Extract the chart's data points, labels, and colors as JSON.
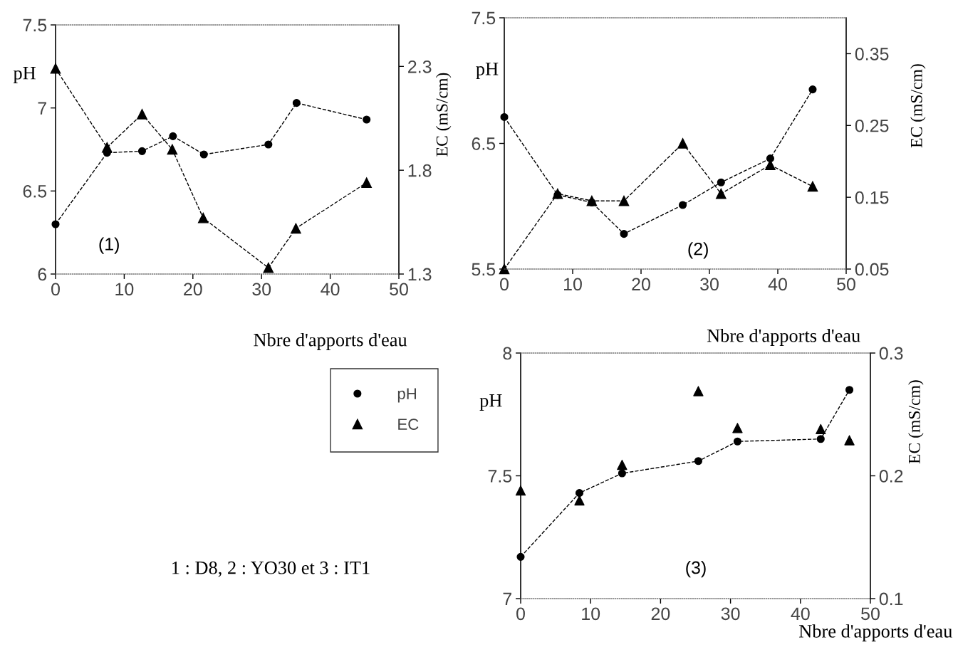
{
  "chart_data": [
    {
      "type": "line",
      "xlabel": "Nbre d'apports d'eau",
      "ylabel": "pH",
      "y2label": "EC (mS/cm)",
      "xlim": [
        0,
        50
      ],
      "xticks": [
        0,
        10,
        20,
        30,
        40,
        50
      ],
      "ylim": [
        6,
        7.5
      ],
      "yticks": [
        6,
        6.5,
        7,
        7.5
      ],
      "y2lim": [
        1.3,
        2.5
      ],
      "y2ticks": [
        1.3,
        1.8,
        2.3
      ],
      "legend": "bottom right",
      "annotations": [
        "(1)",
        "1 : D8, 2 : YO30 et 3 : IT1"
      ],
      "series": [
        {
          "name": "pH",
          "color": "#000000",
          "marker": "circle",
          "line_style": "dashed",
          "x": [
            0,
            7.5,
            12.6,
            17.1,
            21.6,
            31,
            35.1,
            45.3
          ],
          "values": [
            6.3,
            6.73,
            6.74,
            6.83,
            6.72,
            6.78,
            7.03,
            6.93
          ]
        },
        {
          "name": "EC",
          "axis": "y2",
          "color": "#000000",
          "marker": "triangle",
          "line_style": "dashed",
          "x": [
            0,
            7.5,
            12.6,
            17,
            21.5,
            31,
            35,
            45.3
          ],
          "values": [
            2.29,
            1.91,
            2.07,
            1.9,
            1.57,
            1.33,
            1.52,
            1.74
          ]
        }
      ]
    },
    {
      "type": "line",
      "xlabel": "Nbre d'apports d'eau",
      "ylabel": "pH",
      "y2label": "EC (mS/cm)",
      "xlim": [
        0,
        50
      ],
      "xticks": [
        0,
        10,
        20,
        30,
        40,
        50
      ],
      "ylim": [
        5.5,
        7.5
      ],
      "yticks": [
        5.5,
        6.5,
        7.5
      ],
      "y2lim": [
        0.05,
        0.4
      ],
      "y2ticks": [
        0.05,
        0.15,
        0.25,
        0.35
      ],
      "annotations": [
        "(2)"
      ],
      "series": [
        {
          "color": "#000000",
          "marker": "circle",
          "line_style": "dashed",
          "x": [
            0,
            7.8,
            12.8,
            17.5,
            26.1,
            31.7,
            38.9,
            45.1
          ],
          "values": [
            6.71,
            6.09,
            6.03,
            5.78,
            6.01,
            6.19,
            6.38,
            6.93
          ]
        },
        {
          "axis": "y2",
          "color": "#000000",
          "marker": "triangle",
          "line_style": "dashed",
          "x": [
            0,
            7.8,
            12.8,
            17.5,
            26.1,
            31.7,
            38.9,
            45.1
          ],
          "values": [
            0.05,
            0.155,
            0.145,
            0.145,
            0.225,
            0.155,
            0.195,
            0.165
          ]
        }
      ]
    },
    {
      "type": "line",
      "xlabel": "Nbre d'apports d'eau",
      "ylabel": "pH",
      "y2label": "EC (mS/cm)",
      "xlim": [
        0,
        50
      ],
      "xticks": [
        0,
        10,
        20,
        30,
        40,
        50
      ],
      "ylim": [
        7,
        8
      ],
      "yticks": [
        7,
        7.5,
        8
      ],
      "y2lim": [
        0.1,
        0.3
      ],
      "y2ticks": [
        0.1,
        0.2,
        0.3
      ],
      "annotations": [
        "(3)"
      ],
      "series": [
        {
          "color": "#000000",
          "marker": "circle",
          "line_style": "dashed",
          "x": [
            0,
            8.4,
            14.5,
            25.4,
            31,
            42.9,
            47
          ],
          "values": [
            7.17,
            7.43,
            7.51,
            7.56,
            7.64,
            7.65,
            7.85
          ]
        },
        {
          "type": "scatter",
          "axis": "y2",
          "color": "#000000",
          "marker": "triangle",
          "x": [
            0,
            8.4,
            14.5,
            25.4,
            31,
            42.9,
            47
          ],
          "values": [
            0.188,
            0.18,
            0.209,
            0.269,
            0.239,
            0.238,
            0.229
          ]
        }
      ]
    }
  ]
}
